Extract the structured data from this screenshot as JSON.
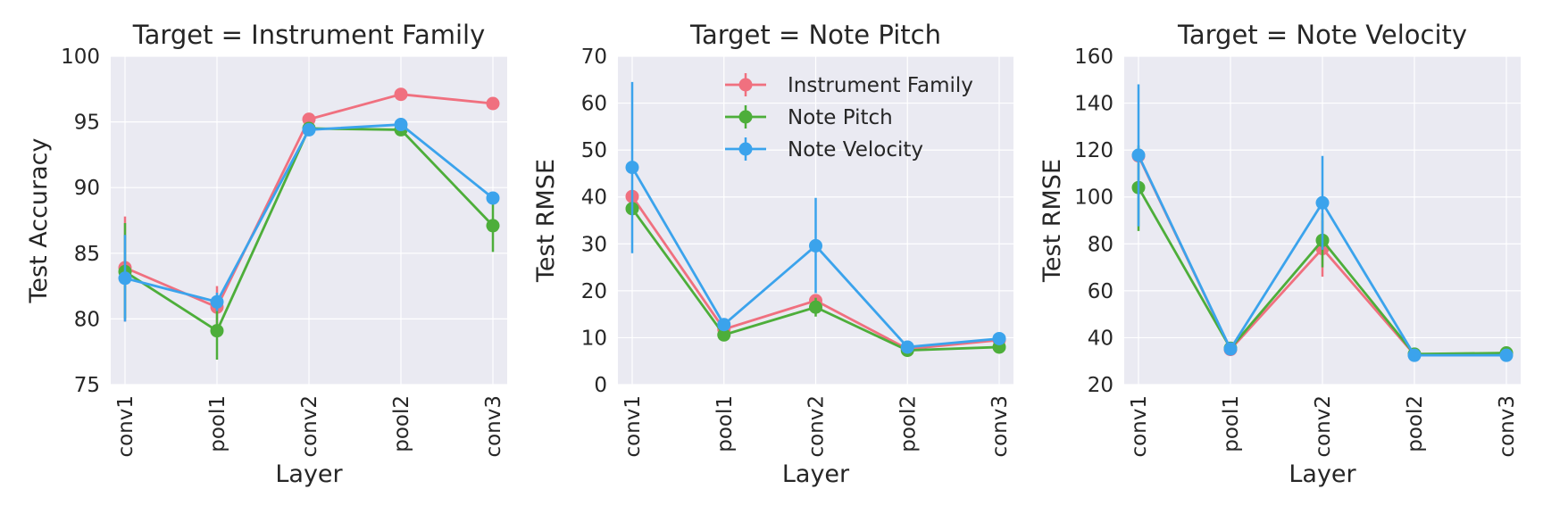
{
  "colors": {
    "panel_bg": "#EAEAF2",
    "grid": "#FFFFFF",
    "text": "#262626",
    "series": {
      "Instrument Family": "#F0707F",
      "Note Pitch": "#4DAE3A",
      "Note Velocity": "#3BA3EC"
    }
  },
  "legend": {
    "placement": "top-right of middle panel",
    "entries": [
      "Instrument Family",
      "Note Pitch",
      "Note Velocity"
    ]
  },
  "chart_data": [
    {
      "type": "line",
      "title": "Target = Instrument Family",
      "xlabel": "Layer",
      "ylabel": "Test Accuracy",
      "categories": [
        "conv1",
        "pool1",
        "conv2",
        "pool2",
        "conv3"
      ],
      "ylim": [
        75,
        100
      ],
      "yticks": [
        75,
        80,
        85,
        90,
        95,
        100
      ],
      "grid": true,
      "series": [
        {
          "name": "Instrument Family",
          "values": [
            83.9,
            80.9,
            95.2,
            97.1,
            96.4
          ],
          "err_low": [
            79.8,
            79.3,
            95.2,
            97.1,
            96.4
          ],
          "err_high": [
            87.8,
            82.5,
            95.2,
            97.1,
            96.4
          ]
        },
        {
          "name": "Note Pitch",
          "values": [
            83.6,
            79.1,
            94.5,
            94.4,
            87.1
          ],
          "err_low": [
            80.0,
            76.9,
            94.5,
            94.0,
            85.1
          ],
          "err_high": [
            87.3,
            81.3,
            94.5,
            94.8,
            89.1
          ]
        },
        {
          "name": "Note Velocity",
          "values": [
            83.1,
            81.3,
            94.4,
            94.8,
            89.2
          ],
          "err_low": [
            79.8,
            80.6,
            94.4,
            94.3,
            89.2
          ],
          "err_high": [
            86.4,
            82.0,
            94.4,
            95.3,
            89.2
          ]
        }
      ]
    },
    {
      "type": "line",
      "title": "Target = Note Pitch",
      "xlabel": "Layer",
      "ylabel": "Test RMSE",
      "categories": [
        "conv1",
        "pool1",
        "conv2",
        "pool2",
        "conv3"
      ],
      "ylim": [
        0,
        70
      ],
      "yticks": [
        0,
        10,
        20,
        30,
        40,
        50,
        60,
        70
      ],
      "grid": true,
      "series": [
        {
          "name": "Instrument Family",
          "values": [
            40.1,
            11.8,
            17.9,
            7.6,
            9.5
          ],
          "err_low": [
            40.1,
            11.8,
            17.9,
            7.6,
            9.5
          ],
          "err_high": [
            40.1,
            11.8,
            17.9,
            7.6,
            9.5
          ]
        },
        {
          "name": "Note Pitch",
          "values": [
            37.5,
            10.6,
            16.5,
            7.3,
            8.0
          ],
          "err_low": [
            37.5,
            10.6,
            14.5,
            7.3,
            8.0
          ],
          "err_high": [
            37.5,
            10.6,
            18.5,
            7.3,
            8.0
          ]
        },
        {
          "name": "Note Velocity",
          "values": [
            46.3,
            12.8,
            29.6,
            8.0,
            9.8
          ],
          "err_low": [
            28.0,
            12.8,
            19.5,
            8.0,
            9.8
          ],
          "err_high": [
            64.5,
            12.8,
            39.8,
            8.0,
            9.8
          ]
        }
      ]
    },
    {
      "type": "line",
      "title": "Target = Note Velocity",
      "xlabel": "Layer",
      "ylabel": "Test RMSE",
      "categories": [
        "conv1",
        "pool1",
        "conv2",
        "pool2",
        "conv3"
      ],
      "ylim": [
        20,
        160
      ],
      "yticks": [
        20,
        40,
        60,
        80,
        100,
        120,
        140,
        160
      ],
      "grid": true,
      "series": [
        {
          "name": "Instrument Family",
          "values": [
            117.5,
            35.0,
            78.0,
            32.8,
            33.0
          ],
          "err_low": [
            117.5,
            35.0,
            66.0,
            32.8,
            33.0
          ],
          "err_high": [
            117.5,
            35.0,
            90.0,
            32.8,
            33.0
          ]
        },
        {
          "name": "Note Pitch",
          "values": [
            104.0,
            35.5,
            81.5,
            33.0,
            33.5
          ],
          "err_low": [
            85.5,
            35.5,
            70.0,
            33.0,
            33.5
          ],
          "err_high": [
            122.0,
            35.5,
            93.0,
            33.0,
            33.5
          ]
        },
        {
          "name": "Note Velocity",
          "values": [
            117.8,
            35.2,
            97.5,
            32.5,
            32.5
          ],
          "err_low": [
            87.5,
            35.2,
            77.5,
            32.5,
            32.5
          ],
          "err_high": [
            148.0,
            35.2,
            117.5,
            32.5,
            32.5
          ]
        }
      ]
    }
  ]
}
